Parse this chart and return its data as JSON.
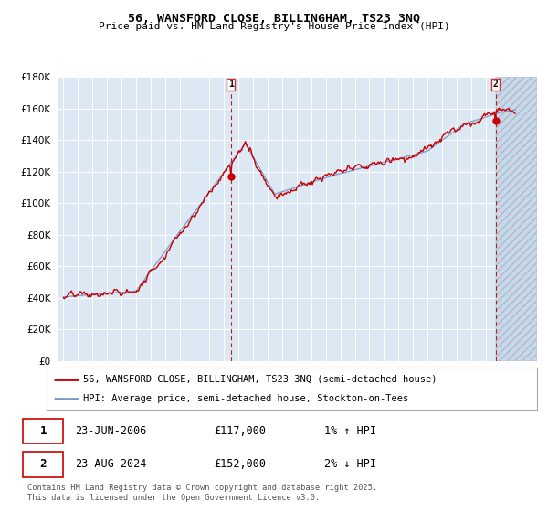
{
  "title": "56, WANSFORD CLOSE, BILLINGHAM, TS23 3NQ",
  "subtitle": "Price paid vs. HM Land Registry's House Price Index (HPI)",
  "ylim": [
    0,
    180000
  ],
  "yticks": [
    0,
    20000,
    40000,
    60000,
    80000,
    100000,
    120000,
    140000,
    160000,
    180000
  ],
  "ytick_labels": [
    "£0",
    "£20K",
    "£40K",
    "£60K",
    "£80K",
    "£100K",
    "£120K",
    "£140K",
    "£160K",
    "£180K"
  ],
  "xlim_start": 1994.6,
  "xlim_end": 2027.5,
  "bg_color": "#dce9f5",
  "red_line_color": "#cc0000",
  "blue_line_color": "#7799cc",
  "grid_color": "#ffffff",
  "marker1_x": 2006.48,
  "marker1_y": 117000,
  "marker2_x": 2024.65,
  "marker2_y": 152000,
  "sale1_date": "23-JUN-2006",
  "sale1_price": "£117,000",
  "sale1_hpi": "1% ↑ HPI",
  "sale2_date": "23-AUG-2024",
  "sale2_price": "£152,000",
  "sale2_hpi": "2% ↓ HPI",
  "legend_label1": "56, WANSFORD CLOSE, BILLINGHAM, TS23 3NQ (semi-detached house)",
  "legend_label2": "HPI: Average price, semi-detached house, Stockton-on-Tees",
  "footer": "Contains HM Land Registry data © Crown copyright and database right 2025.\nThis data is licensed under the Open Government Licence v3.0."
}
